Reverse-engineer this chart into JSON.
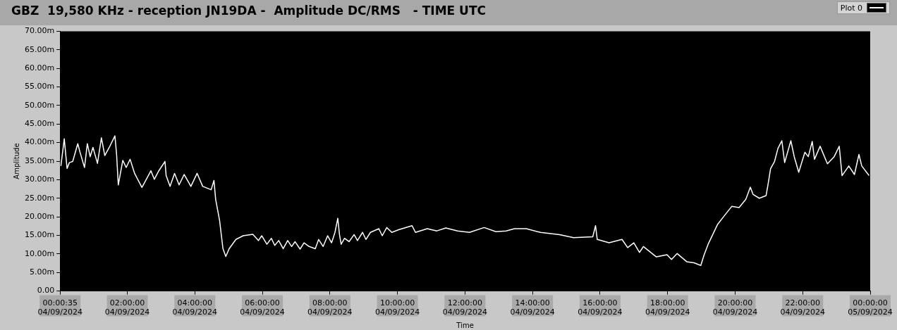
{
  "chart_data": {
    "type": "line",
    "title": "GBZ  19,580 KHz - reception JN19DA -  Amplitude DC/RMS   - TIME UTC",
    "xlabel": "Time",
    "ylabel": "Amplitude",
    "legend": "top right",
    "grid": false,
    "marker": "none",
    "line_style": "solid",
    "xlim": [
      "2024-09-04T00:00:35",
      "2024-09-05T00:00"
    ],
    "xticks": [
      {
        "value": "2024-09-04T00:00:35",
        "label": "00:00:35\n04/09/2024"
      },
      {
        "value": "2024-09-04T02:00",
        "label": "02:00:00\n04/09/2024"
      },
      {
        "value": "2024-09-04T04:00",
        "label": "04:00:00\n04/09/2024"
      },
      {
        "value": "2024-09-04T06:00",
        "label": "06:00:00\n04/09/2024"
      },
      {
        "value": "2024-09-04T08:00",
        "label": "08:00:00\n04/09/2024"
      },
      {
        "value": "2024-09-04T10:00",
        "label": "10:00:00\n04/09/2024"
      },
      {
        "value": "2024-09-04T12:00",
        "label": "12:00:00\n04/09/2024"
      },
      {
        "value": "2024-09-04T14:00",
        "label": "14:00:00\n04/09/2024"
      },
      {
        "value": "2024-09-04T16:00",
        "label": "16:00:00\n04/09/2024"
      },
      {
        "value": "2024-09-04T18:00",
        "label": "18:00:00\n04/09/2024"
      },
      {
        "value": "2024-09-04T20:00",
        "label": "20:00:00\n04/09/2024"
      },
      {
        "value": "2024-09-04T22:00",
        "label": "22:00:00\n04/09/2024"
      },
      {
        "value": "2024-09-05T00:00",
        "label": "00:00:00\n05/09/2024"
      }
    ],
    "ylim": [
      0,
      70
    ],
    "yticks": [
      {
        "value": 0,
        "label": "0.00"
      },
      {
        "value": 5,
        "label": "5.00m"
      },
      {
        "value": 10,
        "label": "10.00m"
      },
      {
        "value": 15,
        "label": "15.00m"
      },
      {
        "value": 20,
        "label": "20.00m"
      },
      {
        "value": 25,
        "label": "25.00m"
      },
      {
        "value": 30,
        "label": "30.00m"
      },
      {
        "value": 35,
        "label": "35.00m"
      },
      {
        "value": 40,
        "label": "40.00m"
      },
      {
        "value": 45,
        "label": "45.00m"
      },
      {
        "value": 50,
        "label": "50.00m"
      },
      {
        "value": 55,
        "label": "55.00m"
      },
      {
        "value": 60,
        "label": "60.00m"
      },
      {
        "value": 65,
        "label": "65.00m"
      },
      {
        "value": 70,
        "label": "70.00m"
      }
    ],
    "series": [
      {
        "name": "Plot 0",
        "color": "#ffffff",
        "x": [
          "2024-09-04T00:02",
          "2024-09-04T00:08",
          "2024-09-04T00:13",
          "2024-09-04T00:17",
          "2024-09-04T00:23",
          "2024-09-04T00:32",
          "2024-09-04T00:36",
          "2024-09-04T00:44",
          "2024-09-04T00:49",
          "2024-09-04T00:54",
          "2024-09-04T00:59",
          "2024-09-04T01:07",
          "2024-09-04T01:14",
          "2024-09-04T01:20",
          "2024-09-04T01:28",
          "2024-09-04T01:38",
          "2024-09-04T01:41",
          "2024-09-04T01:44",
          "2024-09-04T01:52",
          "2024-09-04T01:58",
          "2024-09-04T02:05",
          "2024-09-04T02:13",
          "2024-09-04T02:26",
          "2024-09-04T02:42",
          "2024-09-04T02:48",
          "2024-09-04T02:56",
          "2024-09-04T03:07",
          "2024-09-04T03:09",
          "2024-09-04T03:16",
          "2024-09-04T03:24",
          "2024-09-04T03:32",
          "2024-09-04T03:41",
          "2024-09-04T03:53",
          "2024-09-04T04:04",
          "2024-09-04T04:14",
          "2024-09-04T04:29",
          "2024-09-04T04:34",
          "2024-09-04T04:37",
          "2024-09-04T04:44",
          "2024-09-04T04:50",
          "2024-09-04T04:55",
          "2024-09-04T05:01",
          "2024-09-04T05:13",
          "2024-09-04T05:26",
          "2024-09-04T05:43",
          "2024-09-04T05:53",
          "2024-09-04T05:59",
          "2024-09-04T06:08",
          "2024-09-04T06:16",
          "2024-09-04T06:22",
          "2024-09-04T06:29",
          "2024-09-04T06:37",
          "2024-09-04T06:45",
          "2024-09-04T06:52",
          "2024-09-04T06:58",
          "2024-09-04T07:07",
          "2024-09-04T07:14",
          "2024-09-04T07:23",
          "2024-09-04T07:34",
          "2024-09-04T07:40",
          "2024-09-04T07:48",
          "2024-09-04T07:56",
          "2024-09-04T08:03",
          "2024-09-04T08:09",
          "2024-09-04T08:14",
          "2024-09-04T08:17",
          "2024-09-04T08:20",
          "2024-09-04T08:26",
          "2024-09-04T08:34",
          "2024-09-04T08:43",
          "2024-09-04T08:49",
          "2024-09-04T08:58",
          "2024-09-04T09:04",
          "2024-09-04T09:12",
          "2024-09-04T09:27",
          "2024-09-04T09:33",
          "2024-09-04T09:41",
          "2024-09-04T09:50",
          "2024-09-04T10:02",
          "2024-09-04T10:26",
          "2024-09-04T10:32",
          "2024-09-04T10:53",
          "2024-09-04T11:10",
          "2024-09-04T11:26",
          "2024-09-04T11:47",
          "2024-09-04T12:08",
          "2024-09-04T12:34",
          "2024-09-04T12:55",
          "2024-09-04T13:13",
          "2024-09-04T13:28",
          "2024-09-04T13:49",
          "2024-09-04T14:14",
          "2024-09-04T14:48",
          "2024-09-04T15:13",
          "2024-09-04T15:47",
          "2024-09-04T15:52",
          "2024-09-04T15:55",
          "2024-09-04T16:16",
          "2024-09-04T16:39",
          "2024-09-04T16:49",
          "2024-09-04T17:00",
          "2024-09-04T17:10",
          "2024-09-04T17:17",
          "2024-09-04T17:40",
          "2024-09-04T17:59",
          "2024-09-04T18:07",
          "2024-09-04T18:17",
          "2024-09-04T18:34",
          "2024-09-04T18:47",
          "2024-09-04T18:59",
          "2024-09-04T19:05",
          "2024-09-04T19:12",
          "2024-09-04T19:29",
          "2024-09-04T19:44",
          "2024-09-04T19:54",
          "2024-09-04T20:07",
          "2024-09-04T20:19",
          "2024-09-04T20:27",
          "2024-09-04T20:32",
          "2024-09-04T20:43",
          "2024-09-04T20:55",
          "2024-09-04T20:59",
          "2024-09-04T21:03",
          "2024-09-04T21:10",
          "2024-09-04T21:16",
          "2024-09-04T21:23",
          "2024-09-04T21:28",
          "2024-09-04T21:39",
          "2024-09-04T21:45",
          "2024-09-04T21:53",
          "2024-09-04T22:04",
          "2024-09-04T22:10",
          "2024-09-04T22:17",
          "2024-09-04T22:21",
          "2024-09-04T22:31",
          "2024-09-04T22:44",
          "2024-09-04T22:56",
          "2024-09-04T23:05",
          "2024-09-04T23:10",
          "2024-09-04T23:22",
          "2024-09-04T23:32",
          "2024-09-04T23:40",
          "2024-09-04T23:45",
          "2024-09-04T23:58"
        ],
        "values": [
          33.7,
          41.0,
          33.0,
          34.6,
          34.9,
          39.7,
          37.4,
          33.3,
          39.7,
          36.2,
          38.7,
          34.4,
          41.3,
          36.5,
          38.7,
          41.8,
          36.8,
          28.6,
          35.2,
          33.3,
          35.5,
          31.7,
          27.9,
          32.4,
          30.1,
          32.4,
          34.9,
          31.1,
          28.2,
          31.7,
          28.6,
          31.4,
          28.2,
          31.7,
          28.2,
          27.3,
          29.8,
          24.7,
          19.0,
          11.4,
          9.3,
          11.4,
          13.9,
          14.9,
          15.3,
          13.6,
          14.9,
          12.6,
          14.2,
          12.3,
          13.6,
          11.4,
          13.6,
          12.0,
          13.3,
          11.3,
          13.0,
          12.0,
          11.4,
          13.9,
          12.0,
          14.9,
          13.0,
          15.8,
          19.6,
          15.2,
          12.6,
          14.2,
          13.3,
          15.2,
          13.6,
          15.8,
          13.9,
          15.8,
          16.8,
          14.9,
          17.1,
          15.8,
          16.5,
          17.6,
          15.8,
          16.8,
          16.2,
          17.0,
          16.2,
          15.8,
          17.1,
          16.0,
          16.2,
          16.8,
          16.8,
          15.8,
          15.2,
          14.4,
          14.6,
          17.6,
          13.9,
          13.0,
          13.9,
          11.7,
          13.0,
          10.4,
          12.0,
          9.2,
          9.8,
          8.5,
          10.1,
          7.9,
          7.6,
          6.9,
          9.8,
          12.6,
          18.0,
          20.9,
          22.8,
          22.5,
          24.7,
          28.0,
          26.0,
          25.0,
          25.7,
          29.2,
          33.0,
          34.9,
          38.4,
          40.5,
          34.6,
          40.5,
          36.2,
          32.0,
          37.4,
          36.2,
          40.3,
          35.5,
          39.0,
          34.3,
          36.2,
          39.0,
          31.1,
          33.7,
          31.4,
          36.8,
          33.7,
          31.1
        ]
      }
    ]
  }
}
